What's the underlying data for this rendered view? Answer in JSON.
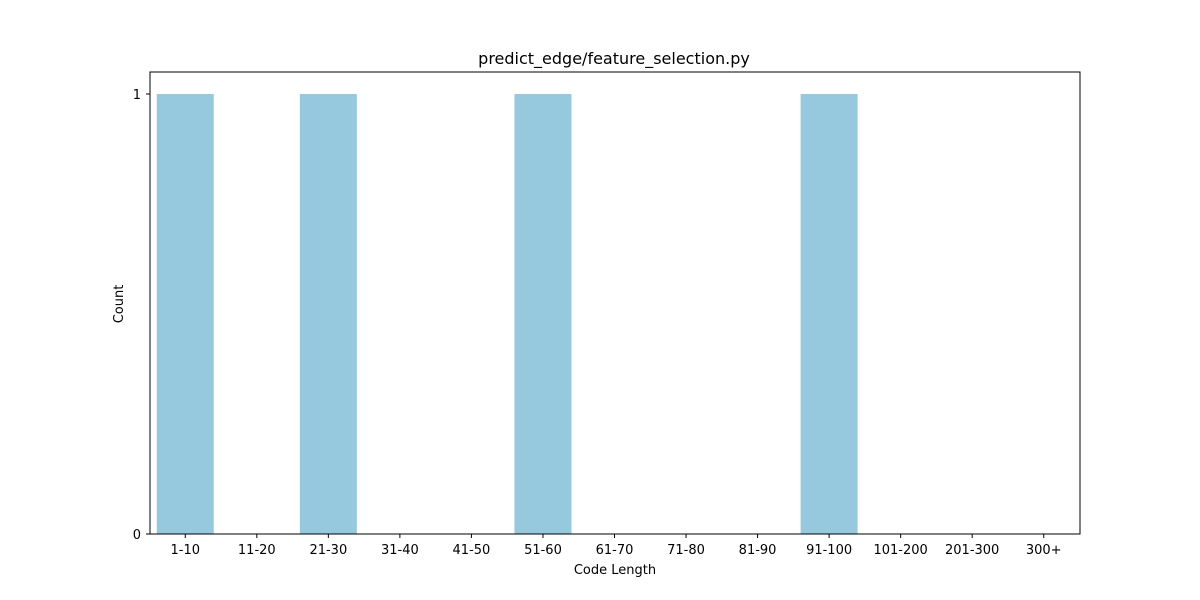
{
  "chart_data": {
    "type": "bar",
    "title": "predict_edge/feature_selection.py",
    "xlabel": "Code Length",
    "ylabel": "Count",
    "categories": [
      "1-10",
      "11-20",
      "21-30",
      "31-40",
      "41-50",
      "51-60",
      "61-70",
      "71-80",
      "81-90",
      "91-100",
      "101-200",
      "201-300",
      "300+"
    ],
    "values": [
      1,
      0,
      1,
      0,
      0,
      1,
      0,
      0,
      0,
      1,
      0,
      0,
      0
    ],
    "ylim": [
      0,
      1.05
    ],
    "yticks": [
      "0",
      "1"
    ],
    "bar_color": "#96c9de",
    "grid": false
  }
}
